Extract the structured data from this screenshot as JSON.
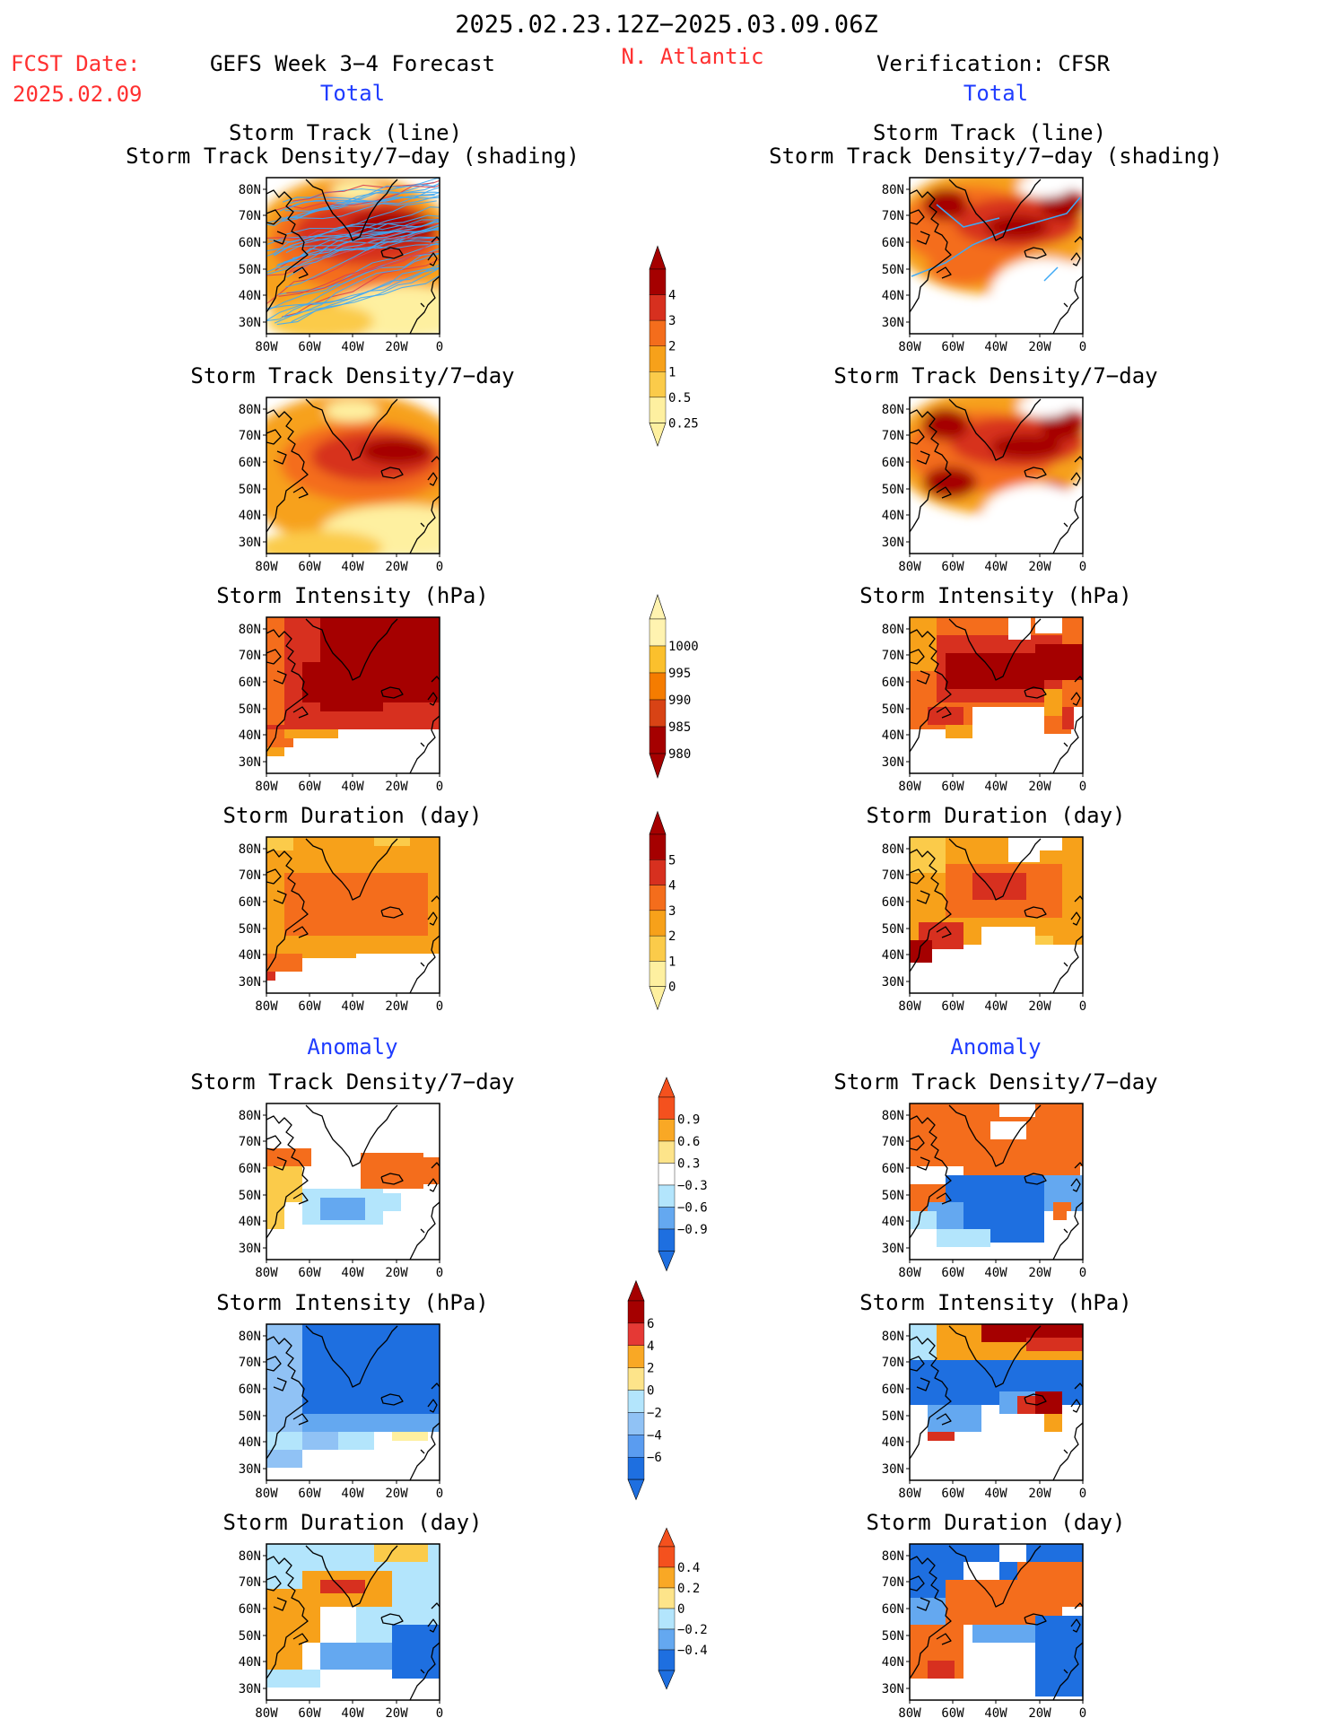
{
  "header": {
    "period": "2025.02.23.12Z−2025.03.09.06Z",
    "fcst_label": "FCST Date:",
    "fcst_date": "2025.02.09",
    "model": "GEFS Week 3−4 Forecast",
    "region": "N. Atlantic",
    "verification": "Verification: CFSR"
  },
  "sections": {
    "total": "Total",
    "anomaly": "Anomaly"
  },
  "panel_titles": {
    "track_line": "Storm Track (line)",
    "track_shading": "Storm Track Density/7−day (shading)",
    "density": "Storm Track Density/7−day",
    "intensity": "Storm Intensity (hPa)",
    "duration": "Storm Duration (day)"
  },
  "map_axes": {
    "lat_labels": [
      "80N",
      "70N",
      "60N",
      "50N",
      "40N",
      "30N"
    ],
    "lon_labels": [
      "80W",
      "60W",
      "40W",
      "20W",
      "0"
    ]
  },
  "colorbars": {
    "density": {
      "labels": [
        "4",
        "3",
        "2",
        "1",
        "0.5",
        "0.25"
      ],
      "colors": [
        "#a50000",
        "#d7301f",
        "#f46d1c",
        "#f7a11a",
        "#fbcb4a",
        "#fef0a0"
      ]
    },
    "intensity": {
      "labels": [
        "1000",
        "995",
        "990",
        "985",
        "980"
      ],
      "colors": [
        "#fff3b0",
        "#fbc02d",
        "#f57c00",
        "#d84315",
        "#a50000"
      ]
    },
    "duration": {
      "labels": [
        "5",
        "4",
        "3",
        "2",
        "1",
        "0"
      ],
      "colors": [
        "#a50000",
        "#d7301f",
        "#f46d1c",
        "#f7a11a",
        "#fbcb4a",
        "#fef0a0"
      ]
    },
    "anom_density": {
      "labels": [
        "0.9",
        "0.6",
        "0.3",
        "−0.3",
        "−0.6",
        "−0.9"
      ],
      "colors": [
        "#f4511e",
        "#f9a825",
        "#fde48a",
        "#ffffff",
        "#b3e5fc",
        "#64a8f0",
        "#1e6fe0"
      ]
    },
    "anom_intensity": {
      "labels": [
        "6",
        "4",
        "2",
        "0",
        "−2",
        "−4",
        "−6"
      ],
      "colors": [
        "#a50000",
        "#e53935",
        "#f9a825",
        "#fde48a",
        "#b3e5fc",
        "#90c2f5",
        "#5a9cf0",
        "#1e6fe0"
      ]
    },
    "anom_duration": {
      "labels": [
        "0.4",
        "0.2",
        "0",
        "−0.2",
        "−0.4"
      ],
      "colors": [
        "#f4511e",
        "#f9a825",
        "#fde48a",
        "#b3e5fc",
        "#64a8f0",
        "#1e6fe0"
      ]
    }
  },
  "colors": {
    "header_red": "#ff3030",
    "section_blue": "#1f3cff",
    "track_line": "#3fa9f5",
    "track_line_mean": "#d94050"
  }
}
